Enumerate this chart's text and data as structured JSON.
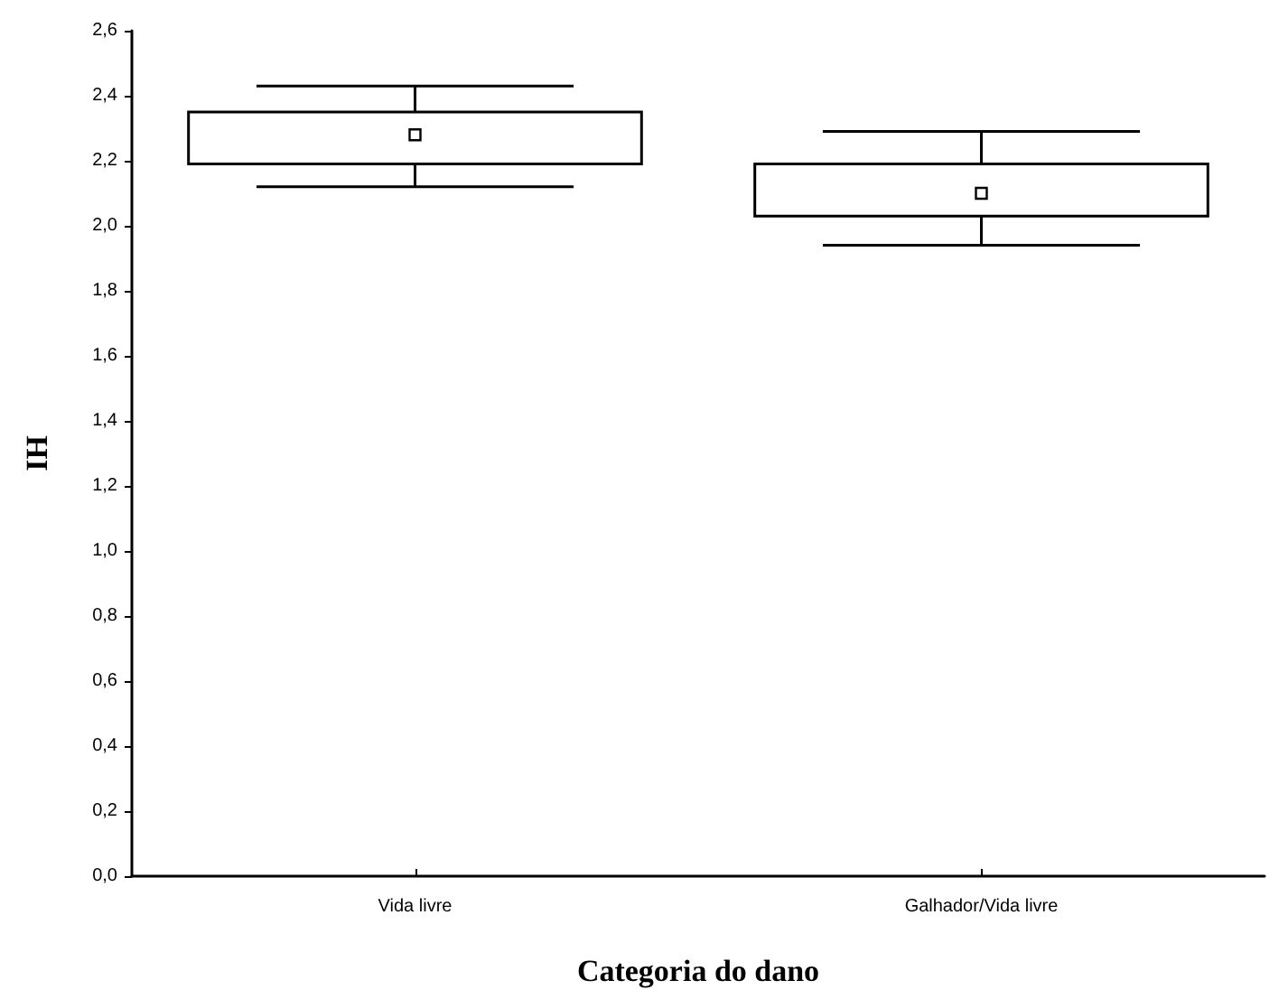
{
  "chart_data": {
    "type": "box",
    "xlabel": "Categoria do dano",
    "ylabel": "IH",
    "categories": [
      "Vida livre",
      "Galhador/Vida livre"
    ],
    "boxes": [
      {
        "low": 2.12,
        "q1": 2.19,
        "median": 2.28,
        "q3": 2.35,
        "high": 2.43
      },
      {
        "low": 1.94,
        "q1": 2.03,
        "median": 2.1,
        "q3": 2.19,
        "high": 2.29
      }
    ],
    "ylim": [
      0,
      2.6
    ],
    "yticks": [
      {
        "value": 0,
        "label": "0,0"
      },
      {
        "value": 0.2,
        "label": "0,2"
      },
      {
        "value": 0.4,
        "label": "0,4"
      },
      {
        "value": 0.6,
        "label": "0,6"
      },
      {
        "value": 0.8,
        "label": "0,8"
      },
      {
        "value": 1,
        "label": "1,0"
      },
      {
        "value": 1.2,
        "label": "1,2"
      },
      {
        "value": 1.4,
        "label": "1,4"
      },
      {
        "value": 1.6,
        "label": "1,6"
      },
      {
        "value": 1.8,
        "label": "1,8"
      },
      {
        "value": 2,
        "label": "2,0"
      },
      {
        "value": 2.2,
        "label": "2,2"
      },
      {
        "value": 2.4,
        "label": "2,4"
      },
      {
        "value": 2.6,
        "label": "2,6"
      }
    ]
  }
}
